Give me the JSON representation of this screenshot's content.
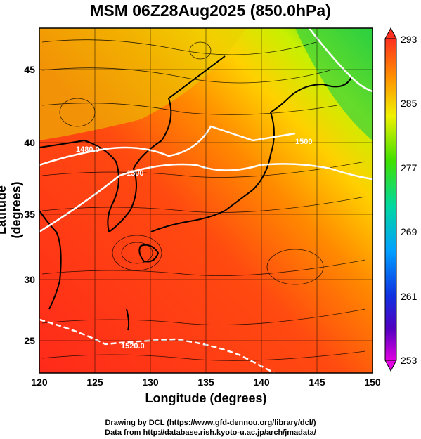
{
  "title": "MSM 06Z28Aug2025 (850.0hPa)",
  "x_axis": {
    "label": "Longitude (degrees)",
    "ticks": [
      "120",
      "125",
      "130",
      "135",
      "140",
      "145",
      "150"
    ],
    "range": [
      120,
      150
    ]
  },
  "y_axis": {
    "label": "Latitude  (degrees)",
    "ticks": [
      "25",
      "30",
      "35",
      "40",
      "45"
    ],
    "range": [
      22.4,
      47.6
    ]
  },
  "colorbar": {
    "ticks": [
      "293",
      "285",
      "277",
      "269",
      "261",
      "253"
    ],
    "range": [
      253,
      293
    ]
  },
  "contour_labels": [
    "1480.0",
    "1500",
    "1500",
    "1520.0"
  ],
  "footer": {
    "line1": "Drawing by DCL (https://www.gfd-dennou.org/library/dcl/)",
    "line2": "Data from http://database.rish.kyoto-u.ac.jp/arch/jmadata/"
  }
}
